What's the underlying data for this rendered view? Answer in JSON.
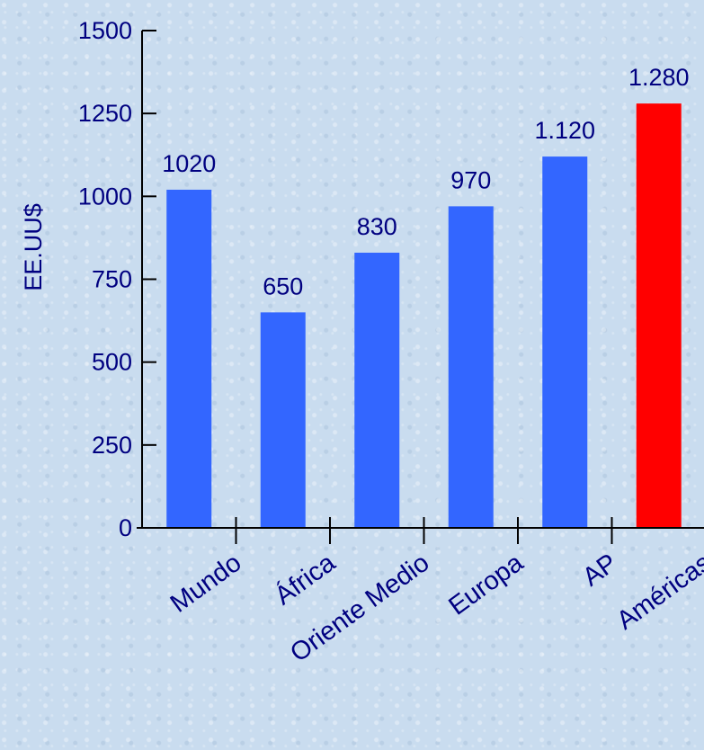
{
  "chart_data": {
    "type": "bar",
    "title": "",
    "xlabel": "",
    "ylabel": "EE.UU$",
    "ylim": [
      0,
      1500
    ],
    "yticks": [
      0,
      250,
      500,
      750,
      1000,
      1250,
      1500
    ],
    "grid": false,
    "categories": [
      "Mundo",
      "África",
      "Oriente Medio",
      "Europa",
      "AP",
      "Américas"
    ],
    "values": [
      1020,
      650,
      830,
      970,
      1120,
      1280
    ],
    "data_labels": [
      "1020",
      "650",
      "830",
      "970",
      "1.120",
      "1.280"
    ],
    "colors": [
      "#3366ff",
      "#3366ff",
      "#3366ff",
      "#3366ff",
      "#3366ff",
      "#ff0000"
    ],
    "label_color": "#000080"
  }
}
